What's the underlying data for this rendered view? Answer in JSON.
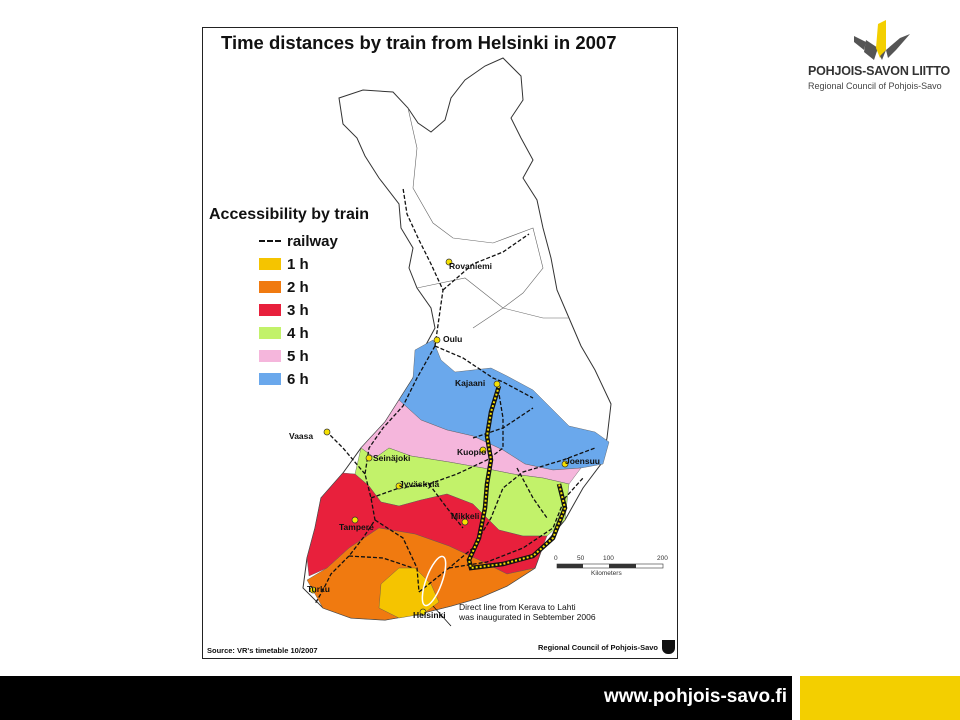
{
  "map": {
    "title": "Time distances by train from Helsinki in 2007",
    "legend": {
      "title": "Accessibility by train",
      "railway_label": "railway",
      "items": [
        {
          "label": "1 h",
          "color": "#f5c400"
        },
        {
          "label": "2 h",
          "color": "#f07a10"
        },
        {
          "label": "3 h",
          "color": "#e8203c"
        },
        {
          "label": "4 h",
          "color": "#c2f26a"
        },
        {
          "label": "5 h",
          "color": "#f5b6dc"
        },
        {
          "label": "6 h",
          "color": "#6aa8ec"
        }
      ]
    },
    "cities": [
      "Rovaniemi",
      "Oulu",
      "Kajaani",
      "Vaasa",
      "Kuopio",
      "Seinäjoki",
      "Joensuu",
      "Jyväskylä",
      "Mikkeli",
      "Tampere",
      "Turku",
      "Helsinki"
    ],
    "scale": {
      "ticks": [
        "0",
        "50",
        "100",
        "200"
      ],
      "unit": "Kilometers"
    },
    "note_lines": [
      "Direct line from Kerava to Lahti",
      "was inaugurated in Sebtember 2006"
    ],
    "source": "Source: VR's timetable 10/2007",
    "credit": "Regional Council of Pohjois-Savo"
  },
  "logo": {
    "name": "POHJOIS-SAVON LIITTO",
    "subtitle": "Regional Council of Pohjois-Savo"
  },
  "footer": {
    "url": "www.pohjois-savo.fi"
  }
}
